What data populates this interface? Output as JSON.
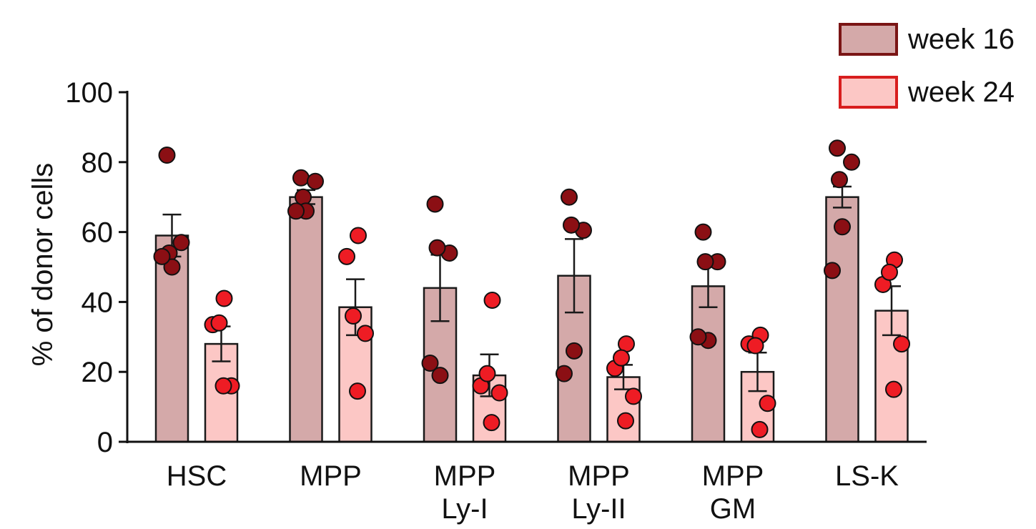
{
  "chart_data": {
    "type": "bar",
    "title": "",
    "xlabel": "",
    "ylabel": "% of donor cells",
    "ylim": [
      0,
      100
    ],
    "yticks": [
      0,
      20,
      40,
      60,
      80,
      100
    ],
    "grid": false,
    "legend_position": "top-right",
    "categories": [
      [
        "HSC"
      ],
      [
        "MPP"
      ],
      [
        "MPP",
        "Ly-I"
      ],
      [
        "MPP",
        "Ly-II"
      ],
      [
        "MPP",
        "GM"
      ],
      [
        "LS-K"
      ]
    ],
    "series": [
      {
        "name": "week 16",
        "bar_color": "#d4a9a9",
        "edge_color": "#7a1515",
        "point_color": "#8b0f14",
        "values": [
          59,
          70,
          44,
          47.5,
          44.5,
          70
        ],
        "errors": [
          6,
          2,
          9.5,
          10.5,
          6,
          3
        ],
        "points": [
          [
            82,
            57,
            54,
            50,
            53
          ],
          [
            75.5,
            74.5,
            70,
            66,
            66
          ],
          [
            68,
            54,
            55.5,
            19,
            22.5
          ],
          [
            70,
            60.5,
            62,
            26,
            19.5
          ],
          [
            60,
            51.5,
            51.5,
            29,
            30
          ],
          [
            84,
            80,
            75,
            61.5,
            49
          ]
        ]
      },
      {
        "name": "week 24",
        "bar_color": "#fcc7c5",
        "edge_color": "#d81e1e",
        "point_color": "#ee1c24",
        "values": [
          28,
          38.5,
          19,
          18.5,
          20,
          37.5
        ],
        "errors": [
          5,
          8,
          6,
          3.5,
          5.5,
          7
        ],
        "points": [
          [
            41,
            33.5,
            34,
            16,
            16
          ],
          [
            59,
            53,
            36,
            31,
            14.5
          ],
          [
            40.5,
            16,
            19.5,
            14,
            5.5
          ],
          [
            28,
            21,
            24,
            13,
            6
          ],
          [
            30.5,
            28,
            27.5,
            11,
            3.5
          ],
          [
            52,
            45,
            48.5,
            28,
            15
          ]
        ]
      }
    ]
  }
}
